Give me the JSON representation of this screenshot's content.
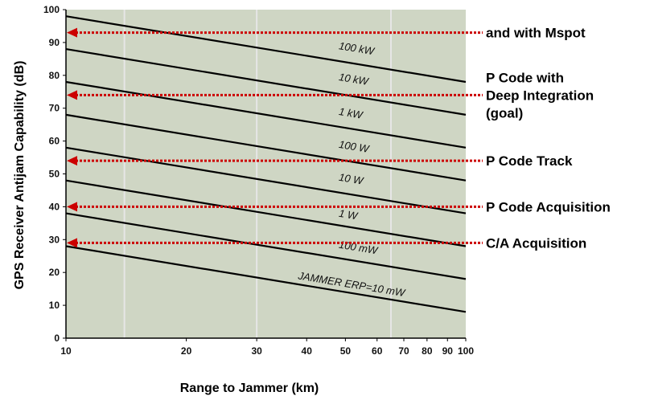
{
  "chart_data": {
    "type": "line",
    "title": "",
    "xlabel": "Range to Jammer (km)",
    "ylabel": "GPS Receiver Antijam Capability (dB)",
    "x_scale": "log",
    "xlim": [
      10,
      100
    ],
    "ylim": [
      0,
      100
    ],
    "x_ticks": [
      10,
      20,
      30,
      40,
      50,
      60,
      70,
      80,
      90,
      100
    ],
    "x_tick_labels": [
      "10",
      "20",
      "30",
      "40",
      "50",
      "60",
      "70",
      "80",
      "90",
      "100"
    ],
    "y_ticks": [
      0,
      10,
      20,
      30,
      40,
      50,
      60,
      70,
      80,
      90,
      100
    ],
    "y_tick_labels": [
      "0",
      "10",
      "20",
      "30",
      "40",
      "50",
      "60",
      "70",
      "80",
      "90",
      "100"
    ],
    "vertical_gridlines": [
      14,
      30,
      65
    ],
    "series": [
      {
        "name": "100 kW",
        "x": [
          10,
          100
        ],
        "y": [
          98,
          78
        ]
      },
      {
        "name": "10 kW",
        "x": [
          10,
          100
        ],
        "y": [
          88,
          68
        ]
      },
      {
        "name": "1 kW",
        "x": [
          10,
          100
        ],
        "y": [
          78,
          58
        ]
      },
      {
        "name": "100 W",
        "x": [
          10,
          100
        ],
        "y": [
          68,
          48
        ]
      },
      {
        "name": "10 W",
        "x": [
          10,
          100
        ],
        "y": [
          58,
          38
        ]
      },
      {
        "name": "1 W",
        "x": [
          10,
          100
        ],
        "y": [
          48,
          28
        ]
      },
      {
        "name": "100 mW",
        "x": [
          10,
          100
        ],
        "y": [
          38,
          18
        ]
      },
      {
        "name": "JAMMER ERP=10 mW",
        "x": [
          10,
          100
        ],
        "y": [
          28,
          8
        ]
      }
    ],
    "series_label_positions": [
      {
        "x": 48,
        "y": 88
      },
      {
        "x": 48,
        "y": 78.5
      },
      {
        "x": 48,
        "y": 68
      },
      {
        "x": 48,
        "y": 58
      },
      {
        "x": 48,
        "y": 48
      },
      {
        "x": 48,
        "y": 37
      },
      {
        "x": 48,
        "y": 27.5
      },
      {
        "x": 38,
        "y": 18
      }
    ],
    "annotations": [
      {
        "lines": [
          "and with Mspot"
        ],
        "y": 93
      },
      {
        "lines": [
          "P Code with",
          "Deep Integration",
          "(goal)"
        ],
        "y": 74
      },
      {
        "lines": [
          "P Code Track"
        ],
        "y": 54
      },
      {
        "lines": [
          "P Code Acquisition"
        ],
        "y": 40
      },
      {
        "lines": [
          "C/A Acquisition"
        ],
        "y": 29
      }
    ],
    "colors": {
      "plot_background": "#cfd6c4",
      "series_line": "#000000",
      "annotation_arrow": "#cc0000",
      "gridline": "#e6e6e6"
    }
  }
}
